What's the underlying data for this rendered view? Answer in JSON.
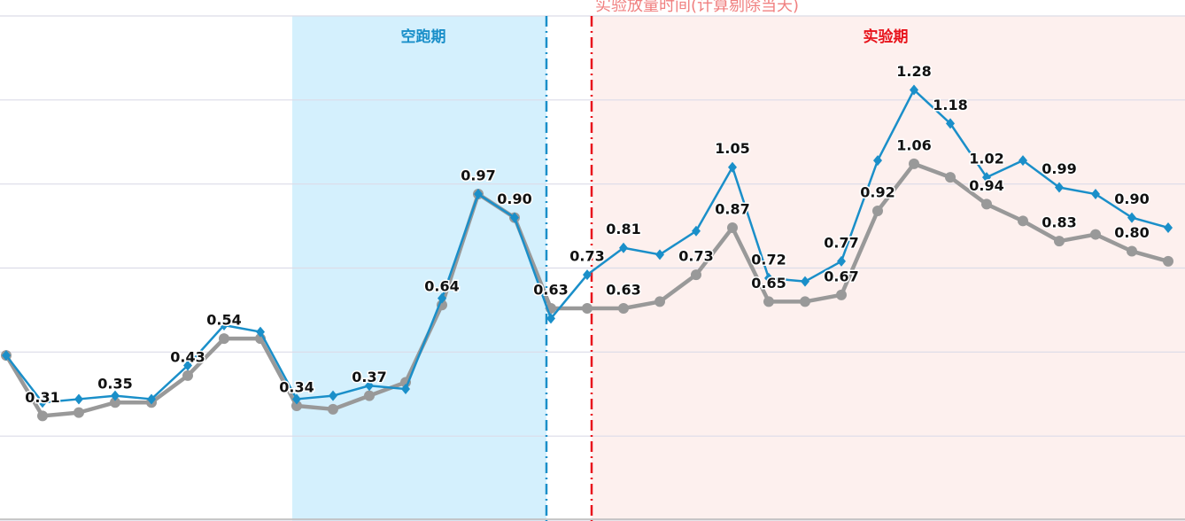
{
  "chart_data": {
    "type": "line",
    "annotations": {
      "top": "实验放量时间(计算剔除当天)",
      "dry_run": "空跑期",
      "experiment": "实验期"
    },
    "x": [
      0,
      1,
      2,
      3,
      4,
      5,
      6,
      7,
      8,
      9,
      10,
      11,
      12,
      13,
      14,
      15,
      16,
      17,
      18,
      19,
      20,
      21,
      22,
      23,
      24,
      25,
      26,
      27,
      28,
      29,
      30,
      31,
      32
    ],
    "ylim": [
      0,
      1.5
    ],
    "yticks": [
      0,
      0.25,
      0.5,
      0.75,
      1,
      1.25,
      1.5
    ],
    "grid": true,
    "series": [
      {
        "color": "#999999",
        "values": [
          0.49,
          0.31,
          0.32,
          0.35,
          0.35,
          0.43,
          0.54,
          0.54,
          0.34,
          0.33,
          0.37,
          0.41,
          0.64,
          0.97,
          0.9,
          0.63,
          0.63,
          0.63,
          0.65,
          0.73,
          0.87,
          0.65,
          0.65,
          0.67,
          0.92,
          1.06,
          1.02,
          0.94,
          0.89,
          0.83,
          0.85,
          0.8,
          0.77
        ],
        "value_labels": [
          null,
          "0.31",
          null,
          "0.35",
          null,
          "0.43",
          "0.54",
          null,
          "0.34",
          null,
          "0.37",
          null,
          "0.64",
          "0.97",
          "0.90",
          "0.63",
          null,
          "0.63",
          null,
          "0.73",
          "0.87",
          "0.65",
          null,
          "0.67",
          "0.92",
          "1.06",
          null,
          "0.94",
          null,
          "0.83",
          null,
          "0.80",
          null
        ]
      },
      {
        "color": "#1a8fc9",
        "values": [
          0.49,
          0.35,
          0.36,
          0.37,
          0.36,
          0.46,
          0.58,
          0.56,
          0.36,
          0.37,
          0.4,
          0.39,
          0.66,
          0.97,
          0.9,
          0.6,
          0.73,
          0.81,
          0.79,
          0.86,
          1.05,
          0.72,
          0.71,
          0.77,
          1.07,
          1.28,
          1.18,
          1.02,
          1.07,
          0.99,
          0.97,
          0.9,
          0.87
        ],
        "value_labels": [
          null,
          null,
          null,
          null,
          null,
          null,
          null,
          null,
          null,
          null,
          null,
          null,
          null,
          null,
          null,
          null,
          "0.73",
          "0.81",
          null,
          null,
          "1.05",
          "0.72",
          null,
          "0.77",
          null,
          "1.28",
          "1.18",
          "1.02",
          null,
          "0.99",
          null,
          "0.90",
          null
        ]
      }
    ]
  }
}
